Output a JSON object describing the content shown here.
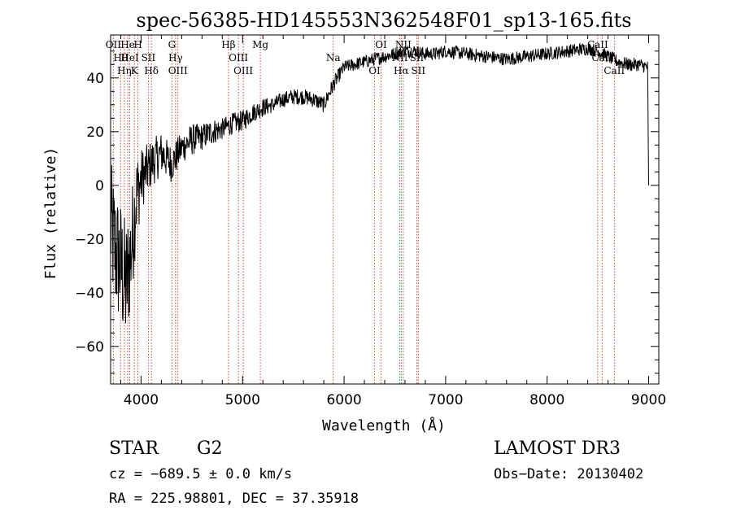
{
  "chart_data": {
    "type": "line",
    "title": "spec-56385-HD145553N362548F01_sp13-165.fits",
    "xlabel": "Wavelength (Å)",
    "ylabel": "Flux (relative)",
    "xlim": [
      3700,
      9100
    ],
    "ylim": [
      -74,
      56
    ],
    "x_ticks": [
      4000,
      5000,
      6000,
      7000,
      8000,
      9000
    ],
    "x_tick_labels": [
      "4000",
      "5000",
      "6000",
      "7000",
      "8000",
      "9000"
    ],
    "y_ticks": [
      -60,
      -40,
      -20,
      0,
      20,
      40
    ],
    "y_tick_labels": [
      "−60",
      "−40",
      "−20",
      "0",
      "20",
      "40"
    ],
    "grid": false,
    "spectrum_anchors": {
      "x": [
        3700,
        3750,
        3800,
        3850,
        3900,
        3950,
        4000,
        4050,
        4100,
        4200,
        4300,
        4400,
        4500,
        4600,
        4700,
        4800,
        4900,
        5000,
        5100,
        5200,
        5300,
        5400,
        5500,
        5600,
        5700,
        5800,
        5900,
        6000,
        6100,
        6200,
        6300,
        6400,
        6500,
        6600,
        6700,
        6800,
        6900,
        7000,
        7200,
        7400,
        7600,
        7800,
        8000,
        8200,
        8400,
        8500,
        8600,
        8700,
        8800,
        8900,
        8990,
        9000
      ],
      "y": [
        -15,
        -25,
        -30,
        -38,
        -25,
        -5,
        2,
        5,
        8,
        12,
        8,
        14,
        17,
        18,
        20,
        21,
        23,
        24,
        27,
        29,
        30,
        32,
        33,
        33,
        32,
        30,
        38,
        44,
        45,
        46,
        47,
        48,
        49,
        50,
        50,
        49,
        49,
        50,
        49,
        48,
        47,
        48,
        49,
        50,
        51,
        50,
        48,
        46,
        45,
        45,
        44,
        0
      ],
      "noise": [
        25,
        25,
        25,
        25,
        22,
        18,
        12,
        10,
        9,
        8,
        7,
        6,
        6,
        5,
        5,
        4,
        4,
        4,
        3.5,
        3.5,
        3,
        3,
        3,
        3,
        3,
        3,
        3,
        2.5,
        2.5,
        2.5,
        2.5,
        2.5,
        2.5,
        2.5,
        2.5,
        2.5,
        2.5,
        2.5,
        2.5,
        2.5,
        2.5,
        2.5,
        2.5,
        2.5,
        2.5,
        2.5,
        2.5,
        2.5,
        2.5,
        2.5,
        2.5,
        0
      ]
    },
    "line_markers": [
      {
        "x": 3727,
        "top": [
          "OII"
        ]
      },
      {
        "x": 3798,
        "top": [
          "Hθ"
        ]
      },
      {
        "x": 3835,
        "top": [
          "Hη"
        ]
      },
      {
        "x": 3869,
        "top": [
          "He"
        ]
      },
      {
        "x": 3889,
        "top": [
          "HeI"
        ]
      },
      {
        "x": 3934,
        "top": [
          "K"
        ]
      },
      {
        "x": 3969,
        "top": [
          "H"
        ]
      },
      {
        "x": 4072,
        "top": [
          "SII"
        ]
      },
      {
        "x": 4102,
        "top": [
          "Hδ"
        ]
      },
      {
        "x": 4304,
        "top": [
          "G"
        ]
      },
      {
        "x": 4340,
        "top": [
          "Hγ"
        ]
      },
      {
        "x": 4363,
        "top": [
          "OIII"
        ]
      },
      {
        "x": 4861,
        "top": [
          "Hβ"
        ]
      },
      {
        "x": 4959,
        "top": [
          "OIII"
        ]
      },
      {
        "x": 5007,
        "top": [
          "OIII"
        ]
      },
      {
        "x": 5175,
        "top": [
          "Mg"
        ]
      },
      {
        "x": 5893,
        "top": [
          "Na"
        ]
      },
      {
        "x": 6300,
        "top": [
          "OI"
        ]
      },
      {
        "x": 6364,
        "top": [
          "OI"
        ]
      },
      {
        "x": 6548,
        "top": [
          "NII"
        ]
      },
      {
        "x": 6563,
        "top": [
          "Hα"
        ]
      },
      {
        "x": 6583,
        "top": [
          "NII"
        ]
      },
      {
        "x": 6716,
        "top": [
          "SII"
        ]
      },
      {
        "x": 6731,
        "top": [
          "SII"
        ]
      },
      {
        "x": 8498,
        "top": [
          "CaII"
        ]
      },
      {
        "x": 8542,
        "top": [
          "CaII"
        ]
      },
      {
        "x": 8662,
        "top": [
          "CaII"
        ]
      }
    ]
  },
  "info": {
    "object_class": "STAR",
    "subclass": "G2",
    "survey": "LAMOST DR3",
    "redshift": "cz = −689.5 ± 0.0 km/s",
    "obs_date": "Obs−Date: 20130402",
    "coords": "RA = 225.98801, DEC =  37.35918"
  }
}
